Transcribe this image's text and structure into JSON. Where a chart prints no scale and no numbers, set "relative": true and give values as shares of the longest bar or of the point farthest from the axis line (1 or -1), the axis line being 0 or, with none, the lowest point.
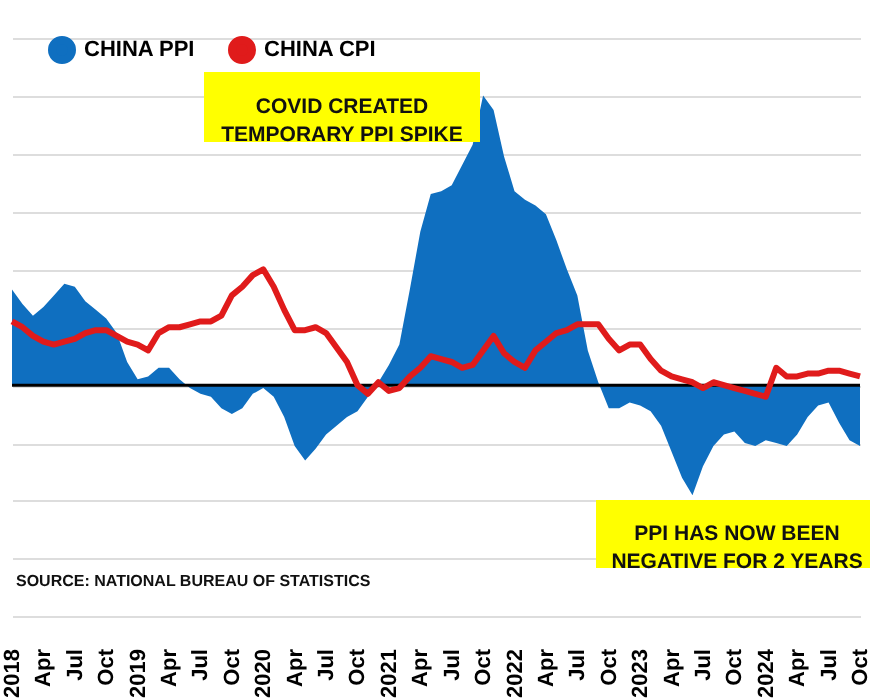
{
  "chart_data": {
    "type": "area",
    "relative": true,
    "legend": "top left",
    "grid": "y",
    "categories": [
      "2018",
      null,
      null,
      "Apr",
      null,
      null,
      "Jul",
      null,
      null,
      "Oct",
      null,
      null,
      "2019",
      null,
      null,
      "Apr",
      null,
      null,
      "Jul",
      null,
      null,
      "Oct",
      null,
      null,
      "2020",
      null,
      null,
      "Apr",
      null,
      null,
      "Jul",
      null,
      null,
      "Oct",
      null,
      null,
      "2021",
      null,
      null,
      "Apr",
      null,
      null,
      "Jul",
      null,
      null,
      "Oct",
      null,
      null,
      "2022",
      null,
      null,
      "Apr",
      null,
      null,
      "Jul",
      null,
      null,
      "Oct",
      null,
      null,
      "2023",
      null,
      null,
      "Apr",
      null,
      null,
      "Jul",
      null,
      null,
      "Oct",
      null,
      null,
      "2024",
      null,
      null,
      "Apr",
      null,
      null,
      "Jul",
      null,
      null,
      "Oct"
    ],
    "series": [
      {
        "name": "CHINA PPI",
        "type": "area",
        "color": "#0f6fc0",
        "values": [
          0.33,
          0.28,
          0.24,
          0.27,
          0.31,
          0.35,
          0.34,
          0.29,
          0.26,
          0.23,
          0.18,
          0.08,
          0.02,
          0.03,
          0.06,
          0.06,
          0.02,
          -0.01,
          -0.03,
          -0.04,
          -0.08,
          -0.1,
          -0.08,
          -0.03,
          -0.01,
          -0.04,
          -0.11,
          -0.21,
          -0.26,
          -0.22,
          -0.17,
          -0.14,
          -0.11,
          -0.09,
          -0.04,
          0.01,
          0.07,
          0.14,
          0.33,
          0.53,
          0.66,
          0.67,
          0.69,
          0.76,
          0.83,
          1,
          0.95,
          0.79,
          0.67,
          0.64,
          0.62,
          0.59,
          0.5,
          0.4,
          0.31,
          0.12,
          0.01,
          -0.08,
          -0.08,
          -0.06,
          -0.07,
          -0.09,
          -0.14,
          -0.23,
          -0.32,
          -0.38,
          -0.28,
          -0.21,
          -0.17,
          -0.16,
          -0.2,
          -0.21,
          -0.19,
          -0.2,
          -0.21,
          -0.17,
          -0.11,
          -0.07,
          -0.06,
          -0.13,
          -0.19,
          -0.21
        ]
      },
      {
        "name": "CHINA CPI",
        "type": "line",
        "color": "#e01b1b",
        "values": [
          0.22,
          0.2,
          0.17,
          0.15,
          0.14,
          0.15,
          0.16,
          0.18,
          0.19,
          0.19,
          0.17,
          0.15,
          0.14,
          0.12,
          0.18,
          0.2,
          0.2,
          0.21,
          0.22,
          0.22,
          0.24,
          0.31,
          0.34,
          0.38,
          0.4,
          0.34,
          0.26,
          0.19,
          0.19,
          0.2,
          0.18,
          0.13,
          0.08,
          0,
          -0.03,
          0.01,
          -0.02,
          -0.01,
          0.03,
          0.06,
          0.1,
          0.09,
          0.08,
          0.06,
          0.07,
          0.12,
          0.17,
          0.11,
          0.08,
          0.06,
          0.12,
          0.15,
          0.18,
          0.19,
          0.21,
          0.21,
          0.21,
          0.16,
          0.12,
          0.14,
          0.14,
          0.09,
          0.05,
          0.03,
          0.02,
          0.01,
          -0.01,
          0.01,
          0,
          -0.01,
          -0.02,
          -0.03,
          -0.04,
          0.06,
          0.03,
          0.03,
          0.04,
          0.04,
          0.05,
          0.05,
          0.04,
          0.03
        ]
      }
    ],
    "annotations": [
      "COVID CREATED\nTEMPORARY PPI SPIKE",
      "PPI HAS NOW BEEN\nNEGATIVE FOR 2 YEARS",
      "SOURCE: NATIONAL BUREAU OF STATISTICS"
    ]
  }
}
